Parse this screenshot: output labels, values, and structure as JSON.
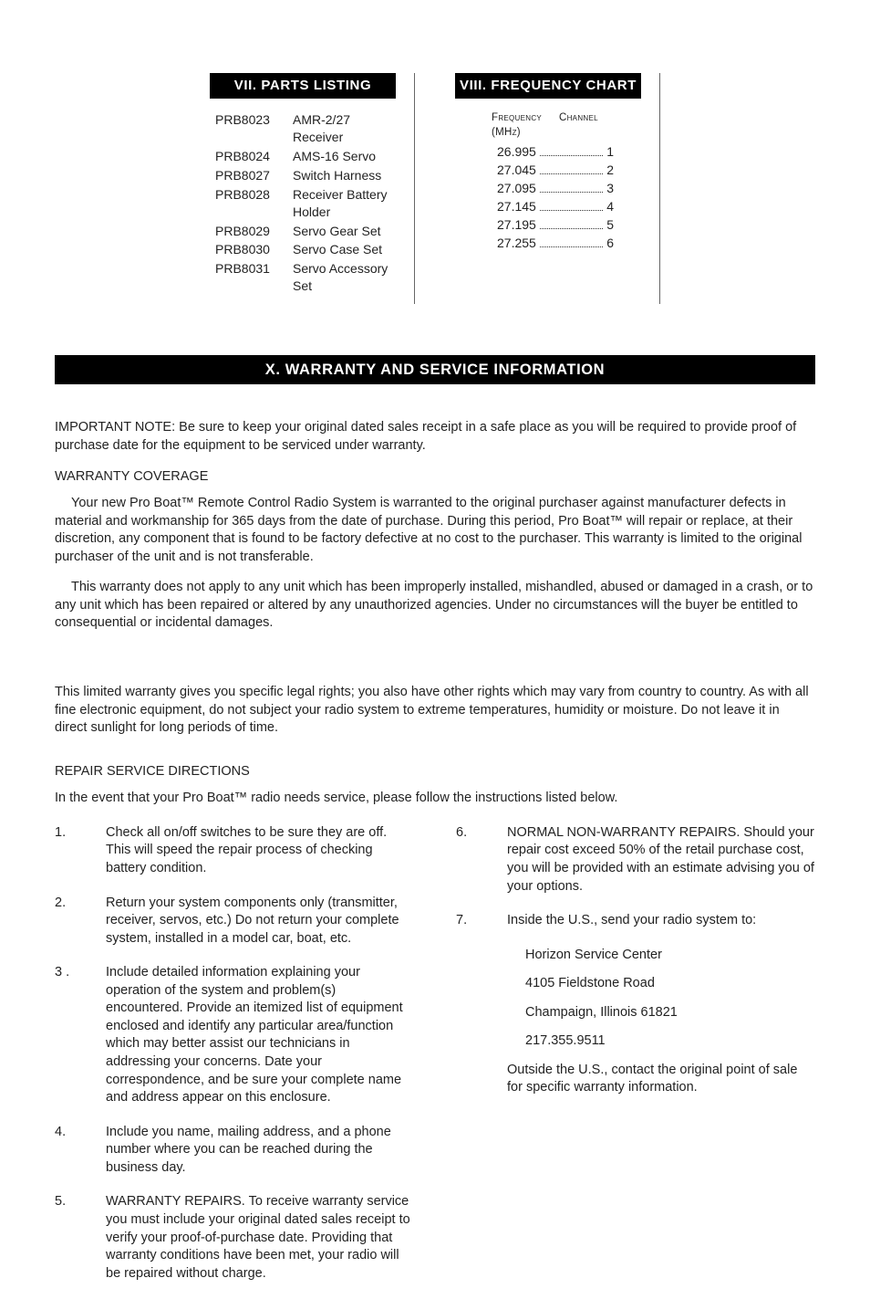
{
  "colors": {
    "header_bg": "#000000",
    "header_fg": "#ffffff",
    "text": "#222222",
    "rule": "#666666",
    "page_bg": "#ffffff"
  },
  "typography": {
    "body_size_pt": 11,
    "header_size_pt": 12,
    "font_family": "Myriad Pro / Arial"
  },
  "parts_listing": {
    "title": "VII. PARTS LISTING",
    "rows": [
      {
        "code": "PRB8023",
        "desc": "AMR-2/27 Receiver"
      },
      {
        "code": "PRB8024",
        "desc": "AMS-16 Servo"
      },
      {
        "code": "PRB8027",
        "desc": "Switch Harness"
      },
      {
        "code": "PRB8028",
        "desc": "Receiver Battery Holder"
      },
      {
        "code": "PRB8029",
        "desc": "Servo Gear Set"
      },
      {
        "code": "PRB8030",
        "desc": "Servo Case Set"
      },
      {
        "code": "PRB8031",
        "desc": "Servo Accessory Set"
      }
    ]
  },
  "frequency_chart": {
    "title": "VIII. FREQUENCY CHART",
    "col1_label": "Frequency (MHz)",
    "col2_label": "Channel",
    "rows": [
      {
        "freq": "26.995",
        "ch": "1"
      },
      {
        "freq": "27.045",
        "ch": "2"
      },
      {
        "freq": "27.095",
        "ch": "3"
      },
      {
        "freq": "27.145",
        "ch": "4"
      },
      {
        "freq": "27.195",
        "ch": "5"
      },
      {
        "freq": "27.255",
        "ch": "6"
      }
    ]
  },
  "warranty": {
    "title": "X. WARRANTY AND SERVICE INFORMATION",
    "important_note": "IMPORTANT NOTE: Be sure to keep your original dated sales receipt in a safe place as you will be required to provide proof of purchase date for the equipment to be serviced under warranty.",
    "coverage_head": "WARRANTY COVERAGE",
    "coverage_p1": "Your new Pro Boat™ Remote Control Radio System is warranted to the original purchaser against manufacturer defects in material and workmanship for 365 days from the date of purchase. During this period, Pro Boat™ will repair or replace, at their discretion, any component that is found to be factory defective at no cost to the purchaser. This warranty is limited to the original purchaser of the unit and is not transferable.",
    "coverage_p2": "This warranty does not apply to any unit which has been improperly installed, mishandled, abused or damaged in a crash, or to any unit which has been repaired or altered by any unauthorized agencies. Under no circumstances will the buyer be entitled to consequential or incidental damages.",
    "limited": "This limited warranty gives you specific legal rights; you also have other rights which may vary from country to country. As with all fine electronic equipment, do not subject your radio system to extreme temperatures, humidity or moisture. Do not leave it in direct sunlight for long periods of time.",
    "repair_head": "REPAIR SERVICE DIRECTIONS",
    "repair_intro": "In the event that your Pro Boat™ radio needs service, please follow the instructions listed below.",
    "steps_left": [
      {
        "num": "1.",
        "text": "Check all on/off switches to be sure they are off. This will speed the repair process of checking battery condition."
      },
      {
        "num": "2.",
        "text": "Return your system components only (transmitter, receiver, servos, etc.) Do not return your complete system, installed in a model car, boat, etc."
      },
      {
        "num": "3 .",
        "text": "Include detailed information explaining your operation of the system and problem(s) encountered. Provide an itemized list of equipment enclosed and identify any particular area/function which may better assist our technicians in addressing your concerns. Date your correspondence, and be sure your complete name and address appear on this enclosure."
      },
      {
        "num": "4.",
        "text": "Include you name, mailing address, and a phone number where you can be reached during the business day."
      },
      {
        "num": "5.",
        "text": "WARRANTY REPAIRS. To receive warranty service you must include your original dated sales receipt to verify your proof-of-purchase date. Providing that warranty conditions have been met, your radio will be repaired without charge."
      }
    ],
    "steps_right": [
      {
        "num": "6.",
        "text": "NORMAL NON-WARRANTY REPAIRS. Should your repair cost exceed 50% of the retail purchase cost, you will be provided with an estimate advising you of your options."
      },
      {
        "num": "7.",
        "text": "Inside the U.S., send your radio system to:"
      }
    ],
    "address": {
      "name": "Horizon Service Center",
      "street": "4105 Fieldstone Road",
      "city": "Champaign, Illinois 61821",
      "phone": "217.355.9511"
    },
    "outside_us": "Outside the U.S., contact the original point of sale for specific warranty information."
  }
}
